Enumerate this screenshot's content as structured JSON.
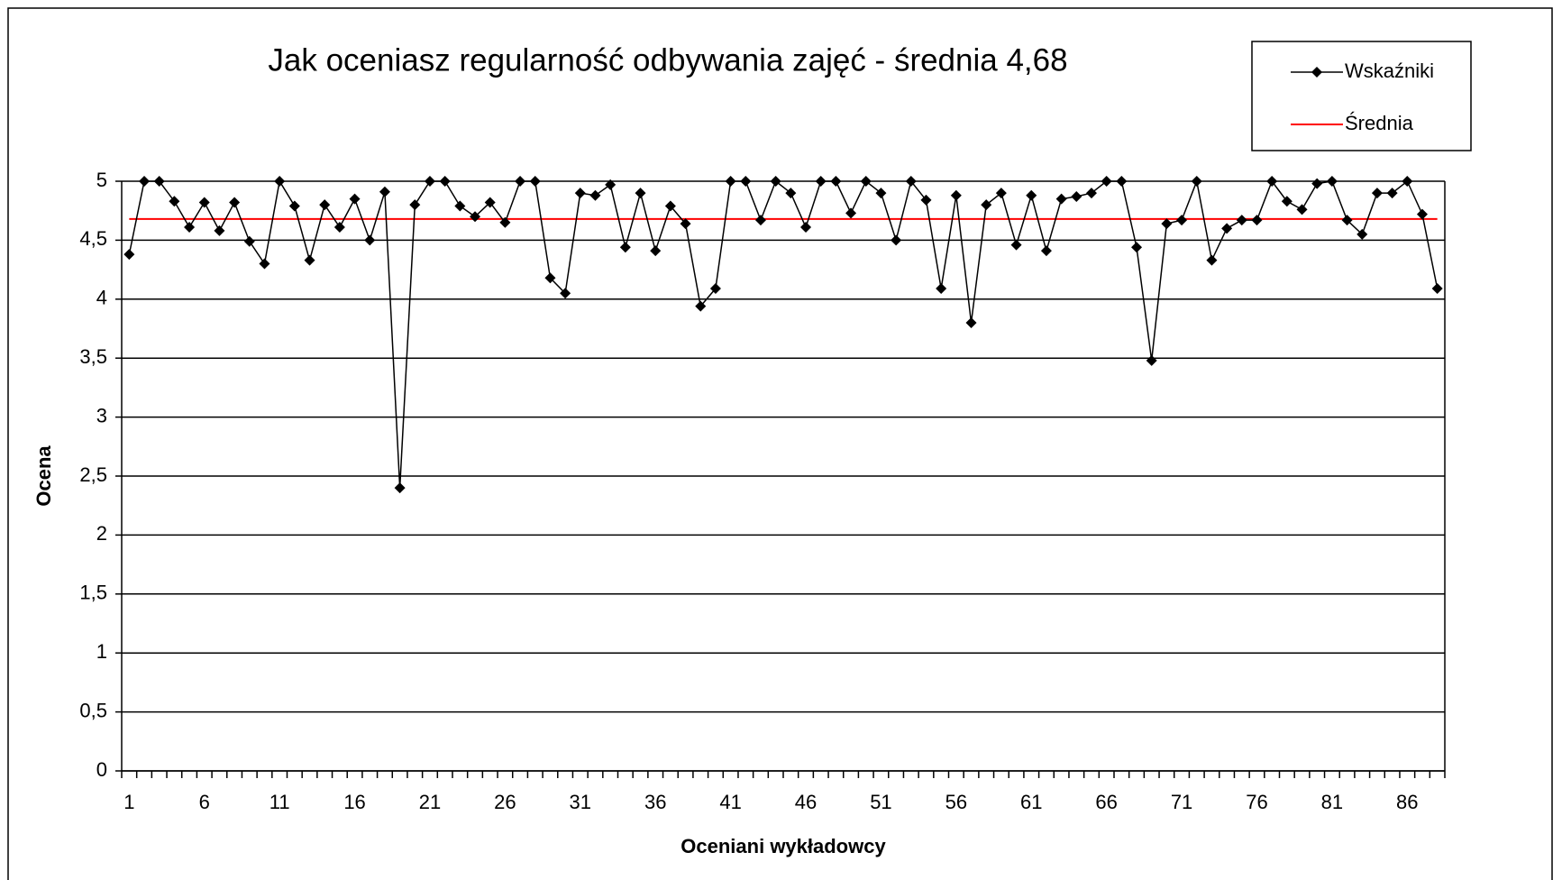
{
  "chart_data": {
    "type": "line",
    "title": "Jak oceniasz regularność odbywania zajęć - średnia 4,68",
    "x_label": "Oceniani wykładowcy",
    "y_label": "Ocena",
    "categories": [
      1,
      null,
      null,
      null,
      null,
      6,
      null,
      null,
      null,
      null,
      11,
      null,
      null,
      null,
      null,
      16,
      null,
      null,
      null,
      null,
      21,
      null,
      null,
      null,
      null,
      26,
      null,
      null,
      null,
      null,
      31,
      null,
      null,
      null,
      null,
      36,
      null,
      null,
      null,
      null,
      41,
      null,
      null,
      null,
      null,
      46,
      null,
      null,
      null,
      null,
      51,
      null,
      null,
      null,
      null,
      56,
      null,
      null,
      null,
      null,
      61,
      null,
      null,
      null,
      null,
      66,
      null,
      null,
      null,
      null,
      71,
      null,
      null,
      null,
      null,
      76,
      null,
      null,
      null,
      null,
      81,
      null,
      null,
      null,
      null,
      86,
      null,
      null
    ],
    "series": [
      {
        "name": "Wskaźniki",
        "color": "#000000",
        "values": [
          4.38,
          5,
          5,
          4.83,
          4.61,
          4.82,
          4.58,
          4.82,
          4.49,
          4.3,
          5,
          4.79,
          4.33,
          4.8,
          4.61,
          4.85,
          4.5,
          4.91,
          2.4,
          4.8,
          5,
          5,
          4.79,
          4.7,
          4.82,
          4.65,
          5,
          5,
          4.18,
          4.05,
          4.9,
          4.88,
          4.97,
          4.44,
          4.9,
          4.41,
          4.79,
          4.64,
          3.94,
          4.09,
          5,
          5,
          4.67,
          5,
          4.9,
          4.61,
          5,
          5,
          4.73,
          5,
          4.9,
          4.5,
          5,
          4.84,
          4.09,
          4.88,
          3.8,
          4.8,
          4.9,
          4.46,
          4.88,
          4.41,
          4.85,
          4.87,
          4.9,
          5,
          5,
          4.44,
          3.48,
          4.64,
          4.67,
          5,
          4.33,
          4.6,
          4.67,
          4.67,
          5,
          4.83,
          4.76,
          4.98,
          5,
          4.67,
          4.55,
          4.9,
          4.9,
          5,
          4.72,
          4.09
        ]
      },
      {
        "name": "Średnia",
        "color": "#ff0000",
        "value": 4.68
      }
    ],
    "ylim": [
      0,
      5
    ],
    "yticks": [
      0,
      {
        "value": 0.5,
        "label": "0,5"
      },
      1,
      {
        "value": 1.5,
        "label": "1,5"
      },
      2,
      {
        "value": 2.5,
        "label": "2,5"
      },
      3,
      {
        "value": 3.5,
        "label": "3,5"
      },
      4,
      {
        "value": 4.5,
        "label": "4,5"
      },
      5
    ],
    "grid": true,
    "legend": "top-right"
  }
}
